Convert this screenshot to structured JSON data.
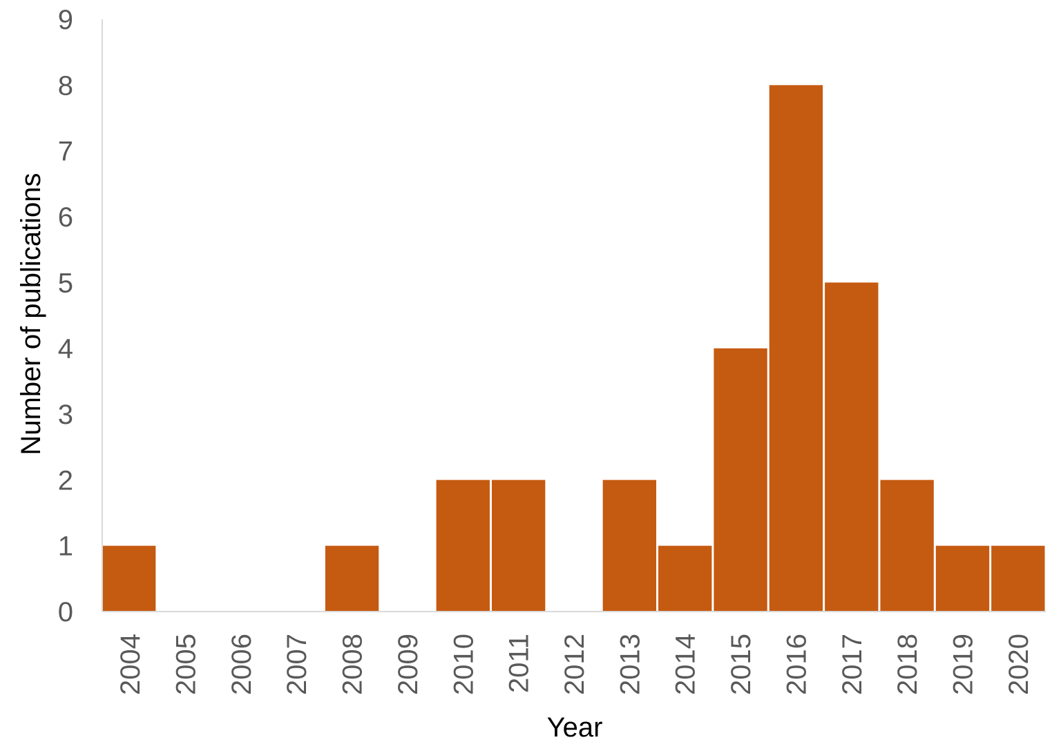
{
  "chart_data": {
    "type": "bar",
    "title": "",
    "xlabel": "Year",
    "ylabel": "Number of publications",
    "categories": [
      "2004",
      "2005",
      "2006",
      "2007",
      "2008",
      "2009",
      "2010",
      "2011",
      "2012",
      "2013",
      "2014",
      "2015",
      "2016",
      "2017",
      "2018",
      "2019",
      "2020"
    ],
    "values": [
      1,
      0,
      0,
      0,
      1,
      0,
      2,
      2,
      0,
      2,
      1,
      4,
      8,
      5,
      2,
      1,
      1
    ],
    "ylim": [
      0,
      9
    ],
    "yticks": [
      0,
      1,
      2,
      3,
      4,
      5,
      6,
      7,
      8,
      9
    ],
    "grid": false,
    "legend": "none",
    "colors": {
      "bar": "#c55a11",
      "axis": "#d9d9d9"
    }
  }
}
